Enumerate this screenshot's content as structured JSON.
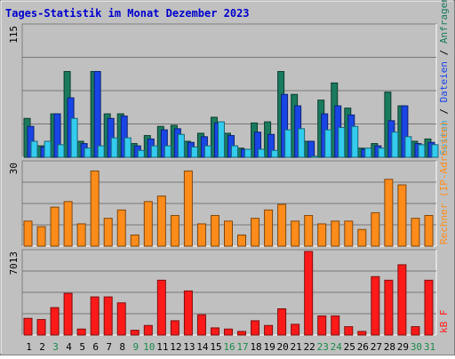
{
  "chart_data": [
    {
      "type": "bar",
      "title": "Tages-Statistik im Monat Dezember 2023",
      "ylabel_parts": [
        "Seiten",
        " / ",
        "Dateien",
        " / ",
        "Anfragen"
      ],
      "ymax_label": "115",
      "ylim": [
        0,
        115
      ],
      "categories": [
        "1",
        "2",
        "3",
        "4",
        "5",
        "6",
        "7",
        "8",
        "9",
        "10",
        "11",
        "12",
        "13",
        "14",
        "15",
        "16",
        "17",
        "18",
        "19",
        "20",
        "21",
        "22",
        "23",
        "24",
        "25",
        "26",
        "27",
        "28",
        "29",
        "30",
        "31"
      ],
      "weekend_days": [
        "3",
        "9",
        "10",
        "16",
        "17",
        "23",
        "24",
        "30",
        "31"
      ],
      "series": [
        {
          "name": "Anfragen",
          "color": "#1a7a5e",
          "values": [
            34,
            10,
            38,
            75,
            14,
            75,
            38,
            38,
            12,
            19,
            27,
            28,
            14,
            21,
            35,
            21,
            8,
            30,
            31,
            75,
            55,
            14,
            50,
            65,
            43,
            8,
            12,
            57,
            45,
            14,
            16
          ]
        },
        {
          "name": "Dateien",
          "color": "#1945e6",
          "values": [
            27,
            9,
            38,
            52,
            12,
            75,
            34,
            36,
            10,
            16,
            24,
            25,
            13,
            18,
            30,
            19,
            7,
            22,
            20,
            55,
            45,
            14,
            38,
            45,
            37,
            7,
            10,
            32,
            45,
            12,
            13
          ]
        },
        {
          "name": "Seiten",
          "color": "#33ccee",
          "values": [
            14,
            14,
            11,
            34,
            8,
            10,
            17,
            17,
            6,
            10,
            10,
            20,
            9,
            10,
            31,
            10,
            7,
            7,
            6,
            24,
            25,
            1,
            24,
            26,
            27,
            8,
            8,
            22,
            18,
            11,
            11
          ]
        }
      ]
    },
    {
      "type": "bar",
      "ylabel_parts": [
        "Rechner (IP-Adressen)"
      ],
      "ymax_label": "30",
      "ylim": [
        0,
        30
      ],
      "categories": [
        "1",
        "2",
        "3",
        "4",
        "5",
        "6",
        "7",
        "8",
        "9",
        "10",
        "11",
        "12",
        "13",
        "14",
        "15",
        "16",
        "17",
        "18",
        "19",
        "20",
        "21",
        "22",
        "23",
        "24",
        "25",
        "26",
        "27",
        "28",
        "29",
        "30",
        "31"
      ],
      "series": [
        {
          "name": "Rechner",
          "color": "#ff8c1a",
          "values": [
            9,
            7,
            14,
            16,
            8,
            27,
            10,
            13,
            4,
            16,
            18,
            11,
            27,
            8,
            11,
            9,
            4,
            10,
            13,
            15,
            9,
            11,
            8,
            9,
            9,
            6,
            12,
            24,
            22,
            10,
            11
          ]
        }
      ]
    },
    {
      "type": "bar",
      "ylabel_parts": [
        "kB F"
      ],
      "ymax_label": "7013",
      "ylim": [
        0,
        7013
      ],
      "categories": [
        "1",
        "2",
        "3",
        "4",
        "5",
        "6",
        "7",
        "8",
        "9",
        "10",
        "11",
        "12",
        "13",
        "14",
        "15",
        "16",
        "17",
        "18",
        "19",
        "20",
        "21",
        "22",
        "23",
        "24",
        "25",
        "26",
        "27",
        "28",
        "29",
        "30",
        "31"
      ],
      "series": [
        {
          "name": "kB F",
          "color": "#ff1a1a",
          "values": [
            1400,
            1300,
            2300,
            3500,
            500,
            3200,
            3200,
            2700,
            400,
            800,
            4600,
            1200,
            3700,
            1700,
            600,
            500,
            300,
            1200,
            800,
            2200,
            900,
            7013,
            1600,
            1600,
            700,
            300,
            4900,
            4600,
            5900,
            700,
            4600
          ]
        }
      ]
    }
  ]
}
